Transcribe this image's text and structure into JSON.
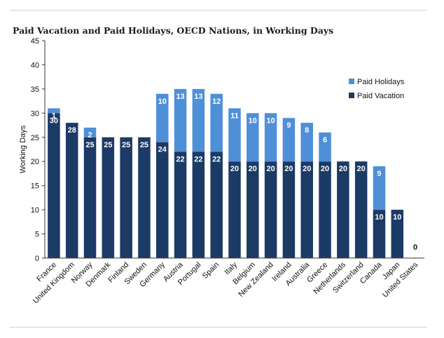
{
  "title": "Paid Vacation and Paid Holidays, OECD Nations, in Working Days",
  "chart_data": {
    "type": "bar",
    "stacked": true,
    "title": "Paid Vacation and Paid Holidays, OECD Nations, in Working Days",
    "ylabel": "Working Days",
    "xlabel": "",
    "ylim": [
      0,
      45
    ],
    "yticks": [
      0,
      5,
      10,
      15,
      20,
      25,
      30,
      35,
      40,
      45
    ],
    "legend_position": "right",
    "categories": [
      "France",
      "United Kingdom",
      "Norway",
      "Denmark",
      "Finland",
      "Sweden",
      "Germany",
      "Austria",
      "Portugal",
      "Spain",
      "Italy",
      "Belgium",
      "New Zealand",
      "Ireland",
      "Australia",
      "Greece",
      "Netherlands",
      "Switzerland",
      "Canada",
      "Japan",
      "United States"
    ],
    "series": [
      {
        "name": "Paid Vacation",
        "color": "#1b3a66",
        "values": [
          30,
          28,
          25,
          25,
          25,
          25,
          24,
          22,
          22,
          22,
          20,
          20,
          20,
          20,
          20,
          20,
          20,
          20,
          10,
          10,
          0
        ]
      },
      {
        "name": "Paid Holidays",
        "color": "#4f8fd8",
        "values": [
          1,
          0,
          2,
          0,
          0,
          0,
          10,
          13,
          13,
          12,
          11,
          10,
          10,
          9,
          8,
          6,
          0,
          0,
          9,
          0,
          0
        ]
      }
    ],
    "zero_label": "0"
  }
}
